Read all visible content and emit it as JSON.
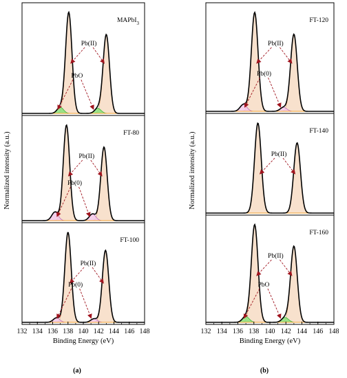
{
  "figure": {
    "panel_labels": [
      "(a)",
      "(b)"
    ]
  },
  "chart_data": [
    {
      "type": "line",
      "panel": "(a)",
      "xlabel": "Binding Energy (eV)",
      "ylabel": "Normalized intensity (a.u.)",
      "xlim": [
        132,
        148
      ],
      "xticks": [
        132,
        134,
        136,
        138,
        140,
        142,
        144,
        146,
        148
      ],
      "grid": false,
      "subplots": [
        {
          "label_main": "MAPbI",
          "label_sub": "3",
          "peaks": [
            {
              "name": "Pb(II)",
              "center": 138.1,
              "height": 1.0,
              "fill": "#f7dcc4"
            },
            {
              "name": "Pb(II)",
              "center": 143.0,
              "height": 0.78,
              "fill": "#f7dcc4"
            },
            {
              "name": "PbO",
              "center": 137.0,
              "height": 0.06,
              "fill": "#8be07a"
            },
            {
              "name": "PbO",
              "center": 141.9,
              "height": 0.05,
              "fill": "#8be07a"
            }
          ],
          "annotations": [
            {
              "text": "Pb(II)",
              "targets_x": [
                138.1,
                143.0
              ]
            },
            {
              "text": "PbO",
              "targets_x": [
                136.4,
                141.6
              ]
            }
          ]
        },
        {
          "label_main": "FT-80",
          "label_sub": "",
          "peaks": [
            {
              "name": "Pb(II)",
              "center": 137.8,
              "height": 1.0,
              "fill": "#f7dcc4"
            },
            {
              "name": "Pb(II)",
              "center": 142.7,
              "height": 0.77,
              "fill": "#f7dcc4"
            },
            {
              "name": "Pb(0)",
              "center": 136.3,
              "height": 0.09,
              "fill": "#f3c8e8"
            },
            {
              "name": "Pb(0)",
              "center": 141.2,
              "height": 0.07,
              "fill": "#f3c8e8"
            }
          ],
          "annotations": [
            {
              "text": "Pb(II)",
              "targets_x": [
                137.8,
                142.7
              ]
            },
            {
              "text": "Pb(0)",
              "targets_x": [
                136.3,
                141.1
              ]
            }
          ]
        },
        {
          "label_main": "FT-100",
          "label_sub": "",
          "peaks": [
            {
              "name": "Pb(II)",
              "center": 138.0,
              "height": 1.0,
              "fill": "#f7dcc4"
            },
            {
              "name": "Pb(II)",
              "center": 142.9,
              "height": 0.8,
              "fill": "#f7dcc4"
            },
            {
              "name": "Pb(0)",
              "center": 136.5,
              "height": 0.05,
              "fill": "#f3c8e8"
            },
            {
              "name": "Pb(0)",
              "center": 141.4,
              "height": 0.04,
              "fill": "#f3c8e8"
            }
          ],
          "annotations": [
            {
              "text": "Pb(II)",
              "targets_x": [
                138.0,
                142.9
              ]
            },
            {
              "text": "Pb(0)",
              "targets_x": [
                136.3,
                141.3
              ]
            }
          ]
        }
      ]
    },
    {
      "type": "line",
      "panel": "(b)",
      "xlabel": "Binding Energy (eV)",
      "ylabel": "Normalized intensity (a.u.)",
      "xlim": [
        132,
        148
      ],
      "xticks": [
        132,
        134,
        136,
        138,
        140,
        142,
        144,
        146,
        148
      ],
      "grid": false,
      "subplots": [
        {
          "label_main": "FT-120",
          "label_sub": "",
          "peaks": [
            {
              "name": "Pb(II)",
              "center": 138.1,
              "height": 1.0,
              "fill": "#f7dcc4"
            },
            {
              "name": "Pb(II)",
              "center": 143.0,
              "height": 0.78,
              "fill": "#f7dcc4"
            },
            {
              "name": "Pb(0)",
              "center": 136.7,
              "height": 0.07,
              "fill": "#f3c8e8"
            },
            {
              "name": "Pb(0)",
              "center": 141.7,
              "height": 0.04,
              "fill": "#f3c8e8"
            }
          ],
          "annotations": [
            {
              "text": "Pb(II)",
              "targets_x": [
                138.1,
                143.0
              ]
            },
            {
              "text": "Pb(0)",
              "targets_x": [
                136.6,
                141.6
              ]
            }
          ]
        },
        {
          "label_main": "FT-140",
          "label_sub": "",
          "peaks": [
            {
              "name": "Pb(II)",
              "center": 138.5,
              "height": 1.0,
              "fill": "#f7dcc4"
            },
            {
              "name": "Pb(II)",
              "center": 143.4,
              "height": 0.78,
              "fill": "#f7dcc4"
            }
          ],
          "annotations": [
            {
              "text": "Pb(II)",
              "targets_x": [
                138.5,
                143.4
              ]
            }
          ]
        },
        {
          "label_main": "FT-160",
          "label_sub": "",
          "peaks": [
            {
              "name": "Pb(II)",
              "center": 138.1,
              "height": 1.0,
              "fill": "#f7dcc4"
            },
            {
              "name": "Pb(II)",
              "center": 143.0,
              "height": 0.78,
              "fill": "#f7dcc4"
            },
            {
              "name": "PbO",
              "center": 137.0,
              "height": 0.06,
              "fill": "#8be07a"
            },
            {
              "name": "PbO",
              "center": 141.9,
              "height": 0.05,
              "fill": "#8be07a"
            }
          ],
          "annotations": [
            {
              "text": "Pb(II)",
              "targets_x": [
                138.1,
                143.0
              ]
            },
            {
              "text": "PbO",
              "targets_x": [
                136.5,
                141.6
              ]
            }
          ]
        }
      ]
    }
  ]
}
